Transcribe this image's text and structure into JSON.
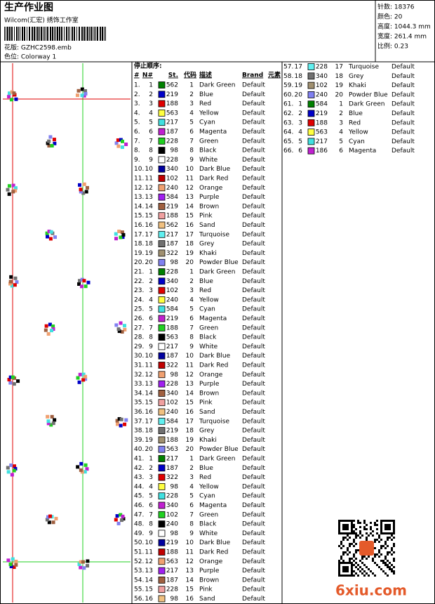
{
  "header": {
    "title": "生产作业图",
    "studio": "Wilcom(汇宏) 绣饰工作室",
    "design": "花版:  GZHC2598.emb",
    "colorway": "色位:  Colorway 1",
    "stats": [
      "针数:  18376",
      "颜色:  20",
      "高度:  1044.3 mm",
      "宽度:  261.4 mm",
      "比例:  0.23"
    ]
  },
  "table": {
    "caption": "停止顺序:",
    "columns": [
      "#",
      "N#",
      "St.",
      "代码",
      "描述",
      "Brand",
      "元素"
    ],
    "rows": [
      {
        "no": "1.",
        "n": "1",
        "color": "#008000",
        "st": "562",
        "code": "1",
        "desc": "Dark Green",
        "brand": "Default"
      },
      {
        "no": "2.",
        "n": "2",
        "color": "#0000c8",
        "st": "219",
        "code": "2",
        "desc": "Blue",
        "brand": "Default"
      },
      {
        "no": "3.",
        "n": "3",
        "color": "#e00000",
        "st": "188",
        "code": "3",
        "desc": "Red",
        "brand": "Default"
      },
      {
        "no": "4.",
        "n": "4",
        "color": "#ffff40",
        "st": "563",
        "code": "4",
        "desc": "Yellow",
        "brand": "Default"
      },
      {
        "no": "5.",
        "n": "5",
        "color": "#40e0e0",
        "st": "217",
        "code": "5",
        "desc": "Cyan",
        "brand": "Default"
      },
      {
        "no": "6.",
        "n": "6",
        "color": "#c020d0",
        "st": "187",
        "code": "6",
        "desc": "Magenta",
        "brand": "Default"
      },
      {
        "no": "7.",
        "n": "7",
        "color": "#20d020",
        "st": "228",
        "code": "7",
        "desc": "Green",
        "brand": "Default"
      },
      {
        "no": "8.",
        "n": "8",
        "color": "#000000",
        "st": "98",
        "code": "8",
        "desc": "Black",
        "brand": "Default"
      },
      {
        "no": "9.",
        "n": "9",
        "color": "#ffffff",
        "st": "228",
        "code": "9",
        "desc": "White",
        "brand": "Default"
      },
      {
        "no": "10.",
        "n": "10",
        "color": "#0000a0",
        "st": "340",
        "code": "10",
        "desc": "Dark Blue",
        "brand": "Default"
      },
      {
        "no": "11.",
        "n": "11",
        "color": "#c00000",
        "st": "102",
        "code": "11",
        "desc": "Dark Red",
        "brand": "Default"
      },
      {
        "no": "12.",
        "n": "12",
        "color": "#f0a070",
        "st": "240",
        "code": "12",
        "desc": "Orange",
        "brand": "Default"
      },
      {
        "no": "13.",
        "n": "13",
        "color": "#a020f0",
        "st": "584",
        "code": "13",
        "desc": "Purple",
        "brand": "Default"
      },
      {
        "no": "14.",
        "n": "14",
        "color": "#a06040",
        "st": "219",
        "code": "14",
        "desc": "Brown",
        "brand": "Default"
      },
      {
        "no": "15.",
        "n": "15",
        "color": "#f0a0a0",
        "st": "188",
        "code": "15",
        "desc": "Pink",
        "brand": "Default"
      },
      {
        "no": "16.",
        "n": "16",
        "color": "#f0c080",
        "st": "562",
        "code": "16",
        "desc": "Sand",
        "brand": "Default"
      },
      {
        "no": "17.",
        "n": "17",
        "color": "#60f0f0",
        "st": "217",
        "code": "17",
        "desc": "Turquoise",
        "brand": "Default"
      },
      {
        "no": "18.",
        "n": "18",
        "color": "#707070",
        "st": "187",
        "code": "18",
        "desc": "Grey",
        "brand": "Default"
      },
      {
        "no": "19.",
        "n": "19",
        "color": "#a09070",
        "st": "322",
        "code": "19",
        "desc": "Khaki",
        "brand": "Default"
      },
      {
        "no": "20.",
        "n": "20",
        "color": "#8080f0",
        "st": "98",
        "code": "20",
        "desc": "Powder Blue",
        "brand": "Default"
      },
      {
        "no": "21.",
        "n": "1",
        "color": "#008000",
        "st": "228",
        "code": "1",
        "desc": "Dark Green",
        "brand": "Default"
      },
      {
        "no": "22.",
        "n": "2",
        "color": "#0000c8",
        "st": "340",
        "code": "2",
        "desc": "Blue",
        "brand": "Default"
      },
      {
        "no": "23.",
        "n": "3",
        "color": "#e00000",
        "st": "102",
        "code": "3",
        "desc": "Red",
        "brand": "Default"
      },
      {
        "no": "24.",
        "n": "4",
        "color": "#ffff40",
        "st": "240",
        "code": "4",
        "desc": "Yellow",
        "brand": "Default"
      },
      {
        "no": "25.",
        "n": "5",
        "color": "#40e0e0",
        "st": "584",
        "code": "5",
        "desc": "Cyan",
        "brand": "Default"
      },
      {
        "no": "26.",
        "n": "6",
        "color": "#c020d0",
        "st": "219",
        "code": "6",
        "desc": "Magenta",
        "brand": "Default"
      },
      {
        "no": "27.",
        "n": "7",
        "color": "#20d020",
        "st": "188",
        "code": "7",
        "desc": "Green",
        "brand": "Default"
      },
      {
        "no": "28.",
        "n": "8",
        "color": "#000000",
        "st": "563",
        "code": "8",
        "desc": "Black",
        "brand": "Default"
      },
      {
        "no": "29.",
        "n": "9",
        "color": "#ffffff",
        "st": "217",
        "code": "9",
        "desc": "White",
        "brand": "Default"
      },
      {
        "no": "30.",
        "n": "10",
        "color": "#0000a0",
        "st": "187",
        "code": "10",
        "desc": "Dark Blue",
        "brand": "Default"
      },
      {
        "no": "31.",
        "n": "11",
        "color": "#c00000",
        "st": "322",
        "code": "11",
        "desc": "Dark Red",
        "brand": "Default"
      },
      {
        "no": "32.",
        "n": "12",
        "color": "#f0a070",
        "st": "98",
        "code": "12",
        "desc": "Orange",
        "brand": "Default"
      },
      {
        "no": "33.",
        "n": "13",
        "color": "#a020f0",
        "st": "228",
        "code": "13",
        "desc": "Purple",
        "brand": "Default"
      },
      {
        "no": "34.",
        "n": "14",
        "color": "#a06040",
        "st": "340",
        "code": "14",
        "desc": "Brown",
        "brand": "Default"
      },
      {
        "no": "35.",
        "n": "15",
        "color": "#f0a0a0",
        "st": "102",
        "code": "15",
        "desc": "Pink",
        "brand": "Default"
      },
      {
        "no": "36.",
        "n": "16",
        "color": "#f0c080",
        "st": "240",
        "code": "16",
        "desc": "Sand",
        "brand": "Default"
      },
      {
        "no": "37.",
        "n": "17",
        "color": "#60f0f0",
        "st": "584",
        "code": "17",
        "desc": "Turquoise",
        "brand": "Default"
      },
      {
        "no": "38.",
        "n": "18",
        "color": "#707070",
        "st": "219",
        "code": "18",
        "desc": "Grey",
        "brand": "Default"
      },
      {
        "no": "39.",
        "n": "19",
        "color": "#a09070",
        "st": "188",
        "code": "19",
        "desc": "Khaki",
        "brand": "Default"
      },
      {
        "no": "40.",
        "n": "20",
        "color": "#8080f0",
        "st": "563",
        "code": "20",
        "desc": "Powder Blue",
        "brand": "Default"
      },
      {
        "no": "41.",
        "n": "1",
        "color": "#008000",
        "st": "217",
        "code": "1",
        "desc": "Dark Green",
        "brand": "Default"
      },
      {
        "no": "42.",
        "n": "2",
        "color": "#0000c8",
        "st": "187",
        "code": "2",
        "desc": "Blue",
        "brand": "Default"
      },
      {
        "no": "43.",
        "n": "3",
        "color": "#e00000",
        "st": "322",
        "code": "3",
        "desc": "Red",
        "brand": "Default"
      },
      {
        "no": "44.",
        "n": "4",
        "color": "#ffff40",
        "st": "98",
        "code": "4",
        "desc": "Yellow",
        "brand": "Default"
      },
      {
        "no": "45.",
        "n": "5",
        "color": "#40e0e0",
        "st": "228",
        "code": "5",
        "desc": "Cyan",
        "brand": "Default"
      },
      {
        "no": "46.",
        "n": "6",
        "color": "#c020d0",
        "st": "340",
        "code": "6",
        "desc": "Magenta",
        "brand": "Default"
      },
      {
        "no": "47.",
        "n": "7",
        "color": "#20d020",
        "st": "102",
        "code": "7",
        "desc": "Green",
        "brand": "Default"
      },
      {
        "no": "48.",
        "n": "8",
        "color": "#000000",
        "st": "240",
        "code": "8",
        "desc": "Black",
        "brand": "Default"
      },
      {
        "no": "49.",
        "n": "9",
        "color": "#ffffff",
        "st": "98",
        "code": "9",
        "desc": "White",
        "brand": "Default"
      },
      {
        "no": "50.",
        "n": "10",
        "color": "#0000a0",
        "st": "219",
        "code": "10",
        "desc": "Dark Blue",
        "brand": "Default"
      },
      {
        "no": "51.",
        "n": "11",
        "color": "#c00000",
        "st": "188",
        "code": "11",
        "desc": "Dark Red",
        "brand": "Default"
      },
      {
        "no": "52.",
        "n": "12",
        "color": "#f0a070",
        "st": "563",
        "code": "12",
        "desc": "Orange",
        "brand": "Default"
      },
      {
        "no": "53.",
        "n": "13",
        "color": "#a020f0",
        "st": "217",
        "code": "13",
        "desc": "Purple",
        "brand": "Default"
      },
      {
        "no": "54.",
        "n": "14",
        "color": "#a06040",
        "st": "187",
        "code": "14",
        "desc": "Brown",
        "brand": "Default"
      },
      {
        "no": "55.",
        "n": "15",
        "color": "#f0a0a0",
        "st": "228",
        "code": "15",
        "desc": "Pink",
        "brand": "Default"
      },
      {
        "no": "56.",
        "n": "16",
        "color": "#f0c080",
        "st": "98",
        "code": "16",
        "desc": "Sand",
        "brand": "Default"
      },
      {
        "no": "57.",
        "n": "17",
        "color": "#60f0f0",
        "st": "228",
        "code": "17",
        "desc": "Turquoise",
        "brand": "Default"
      },
      {
        "no": "58.",
        "n": "18",
        "color": "#707070",
        "st": "340",
        "code": "18",
        "desc": "Grey",
        "brand": "Default"
      },
      {
        "no": "59.",
        "n": "19",
        "color": "#a09070",
        "st": "102",
        "code": "19",
        "desc": "Khaki",
        "brand": "Default"
      },
      {
        "no": "60.",
        "n": "20",
        "color": "#8080f0",
        "st": "240",
        "code": "20",
        "desc": "Powder Blue",
        "brand": "Default"
      },
      {
        "no": "61.",
        "n": "1",
        "color": "#008000",
        "st": "584",
        "code": "1",
        "desc": "Dark Green",
        "brand": "Default"
      },
      {
        "no": "62.",
        "n": "2",
        "color": "#0000c8",
        "st": "219",
        "code": "2",
        "desc": "Blue",
        "brand": "Default"
      },
      {
        "no": "63.",
        "n": "3",
        "color": "#e00000",
        "st": "188",
        "code": "3",
        "desc": "Red",
        "brand": "Default"
      },
      {
        "no": "64.",
        "n": "4",
        "color": "#ffff40",
        "st": "563",
        "code": "4",
        "desc": "Yellow",
        "brand": "Default"
      },
      {
        "no": "65.",
        "n": "5",
        "color": "#40e0e0",
        "st": "217",
        "code": "5",
        "desc": "Cyan",
        "brand": "Default"
      },
      {
        "no": "66.",
        "n": "6",
        "color": "#c020d0",
        "st": "186",
        "code": "6",
        "desc": "Magenta",
        "brand": "Default"
      }
    ]
  },
  "watermark": "6xiu.com"
}
